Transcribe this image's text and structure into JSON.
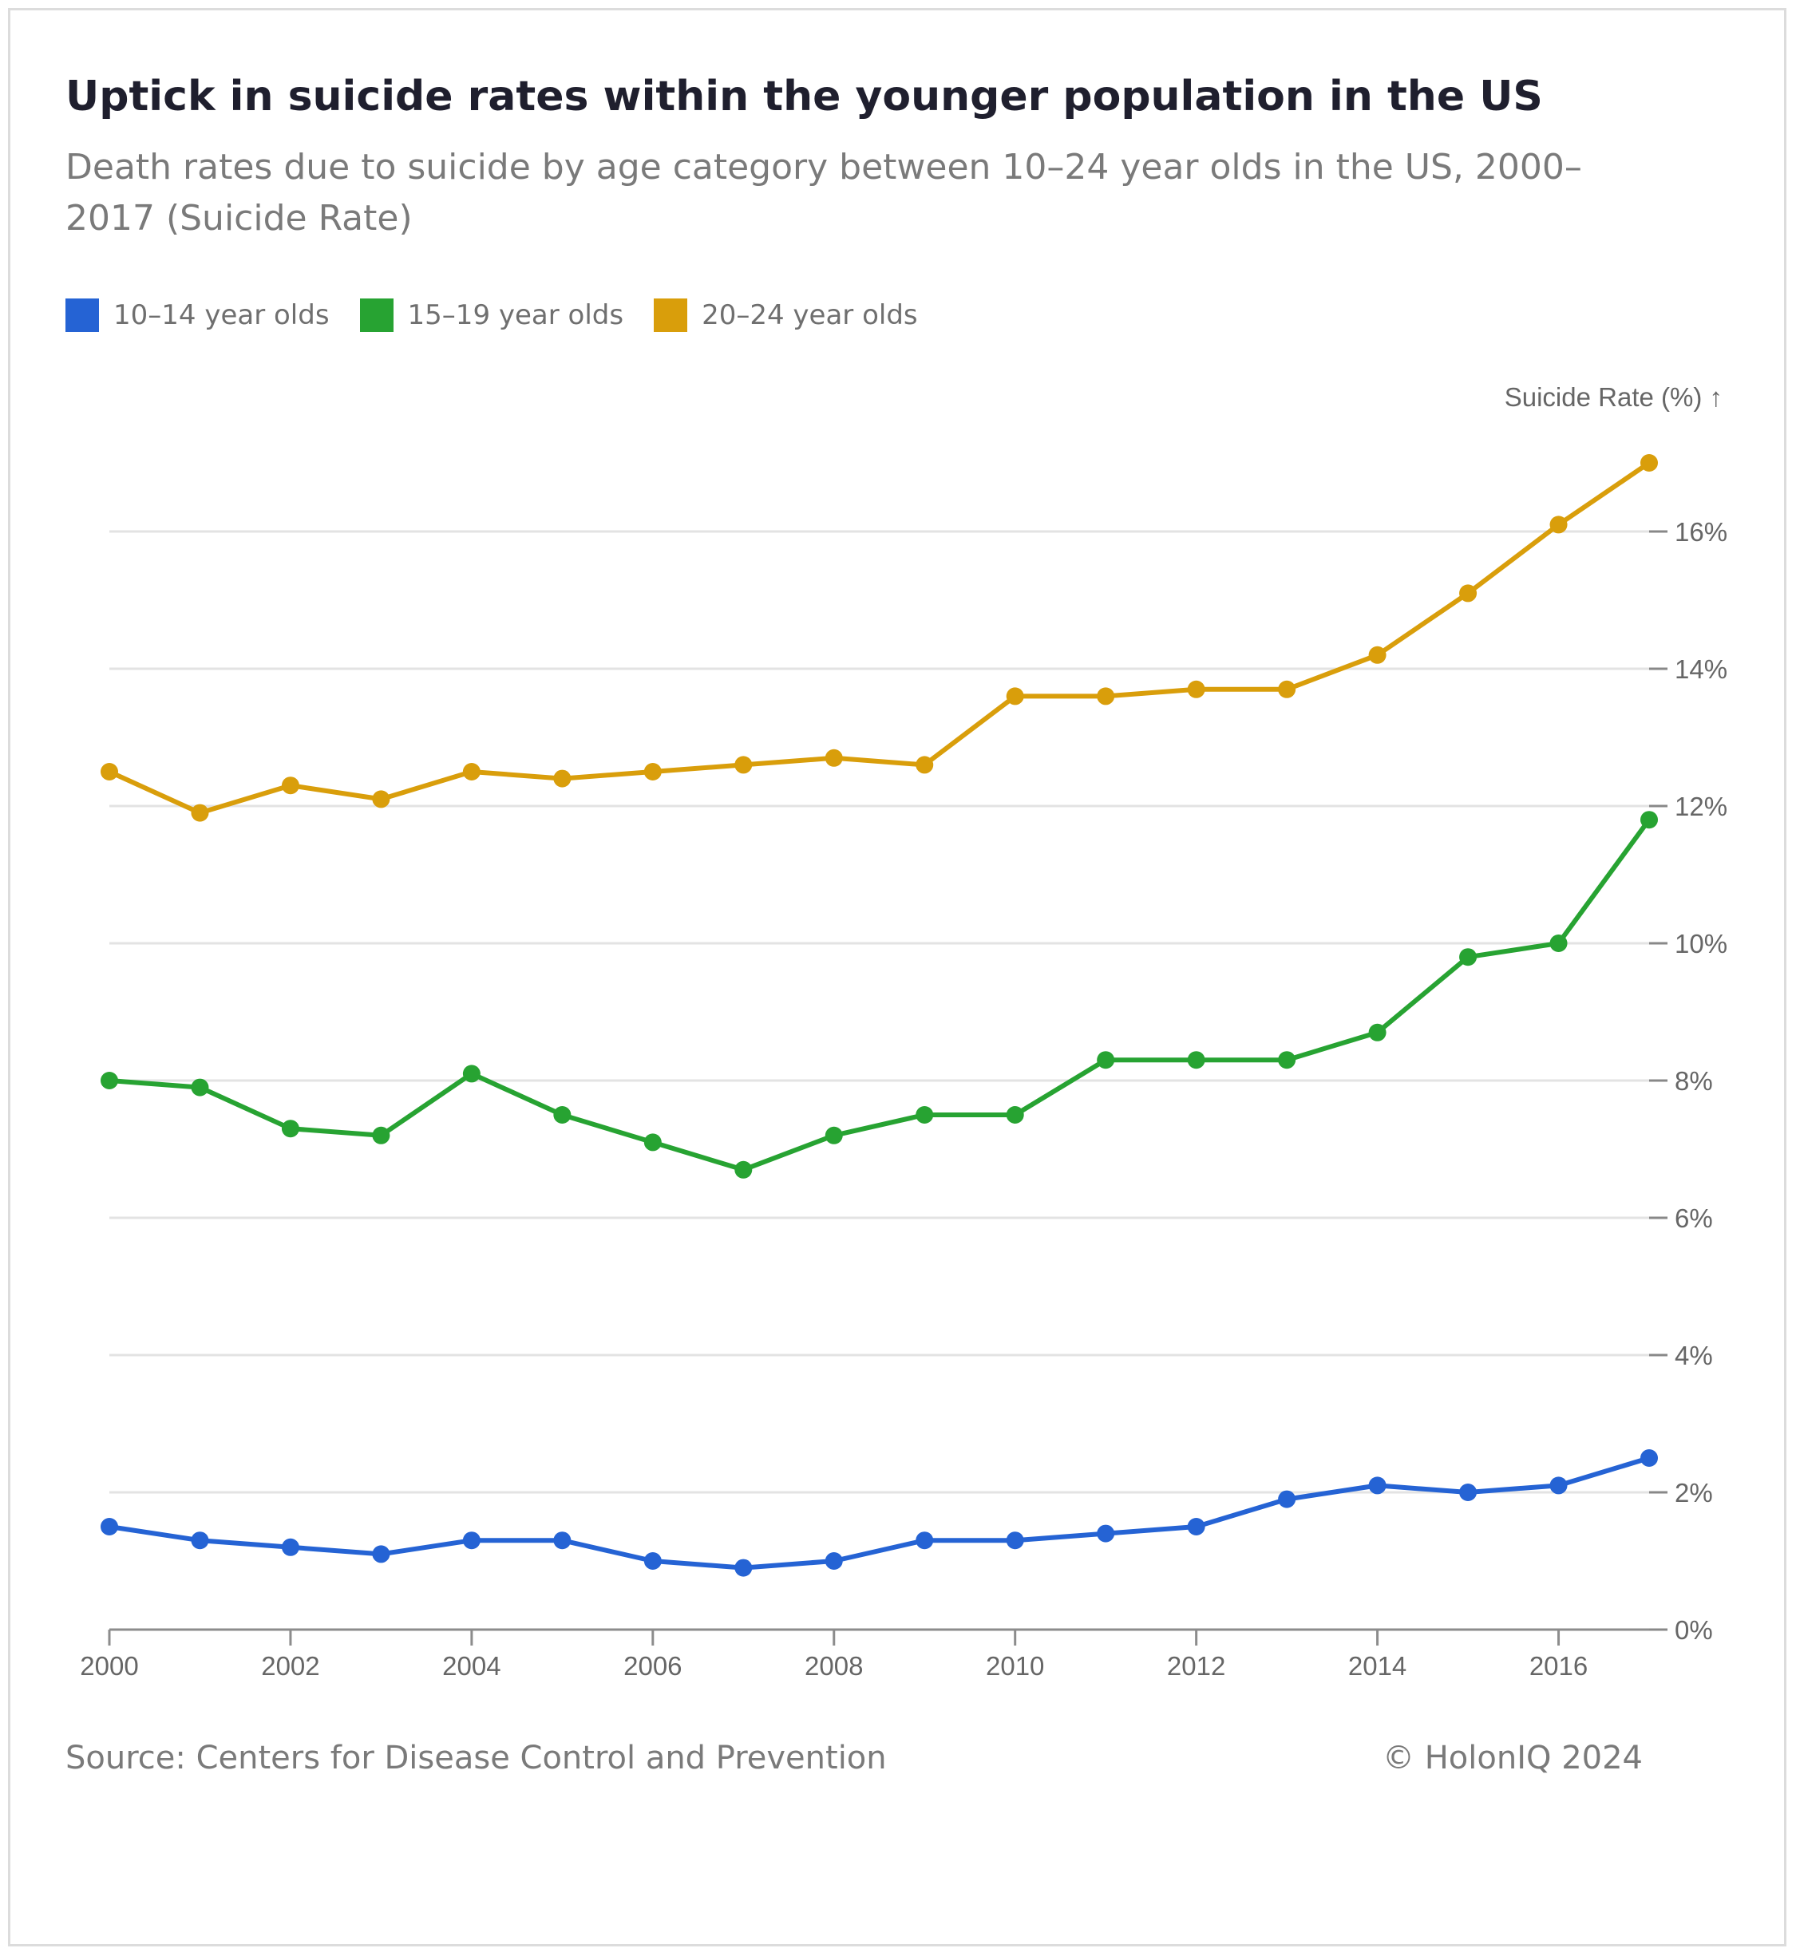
{
  "chart_data": {
    "type": "line",
    "title": "Uptick in suicide rates within the younger population in the US",
    "subtitle": "Death rates due to suicide by age category between 10–24 year olds in the US, 2000–2017 (Suicide Rate)",
    "ylabel": "Suicide Rate (%) ↑",
    "xlabel": "",
    "x": [
      2000,
      2001,
      2002,
      2003,
      2004,
      2005,
      2006,
      2007,
      2008,
      2009,
      2010,
      2011,
      2012,
      2013,
      2014,
      2015,
      2016,
      2017
    ],
    "xticks": [
      "2000",
      "2002",
      "2004",
      "2006",
      "2008",
      "2010",
      "2012",
      "2014",
      "2016"
    ],
    "yticks": [
      "0%",
      "2%",
      "4%",
      "6%",
      "8%",
      "10%",
      "12%",
      "14%",
      "16%"
    ],
    "ylim": [
      0,
      16
    ],
    "grid": true,
    "legend_position": "top-left",
    "series": [
      {
        "name": "10–14 year olds",
        "color": "#2563d4",
        "values": [
          1.5,
          1.3,
          1.2,
          1.1,
          1.3,
          1.3,
          1.0,
          0.9,
          1.0,
          1.3,
          1.3,
          1.4,
          1.5,
          1.9,
          2.1,
          2.0,
          2.1,
          2.5
        ]
      },
      {
        "name": "15–19 year olds",
        "color": "#27a332",
        "values": [
          8.0,
          7.9,
          7.3,
          7.2,
          8.1,
          7.5,
          7.1,
          6.7,
          7.2,
          7.5,
          7.5,
          8.3,
          8.3,
          8.3,
          8.7,
          9.8,
          10.0,
          11.8
        ]
      },
      {
        "name": "20–24 year olds",
        "color": "#d99e0b",
        "values": [
          12.5,
          11.9,
          12.3,
          12.1,
          12.5,
          12.4,
          12.5,
          12.6,
          12.7,
          12.6,
          13.6,
          13.6,
          13.7,
          13.7,
          14.2,
          15.1,
          16.1,
          17.0
        ]
      }
    ]
  },
  "footer": {
    "source": "Source: Centers for Disease Control and Prevention",
    "copyright": "© HolonIQ 2024"
  }
}
